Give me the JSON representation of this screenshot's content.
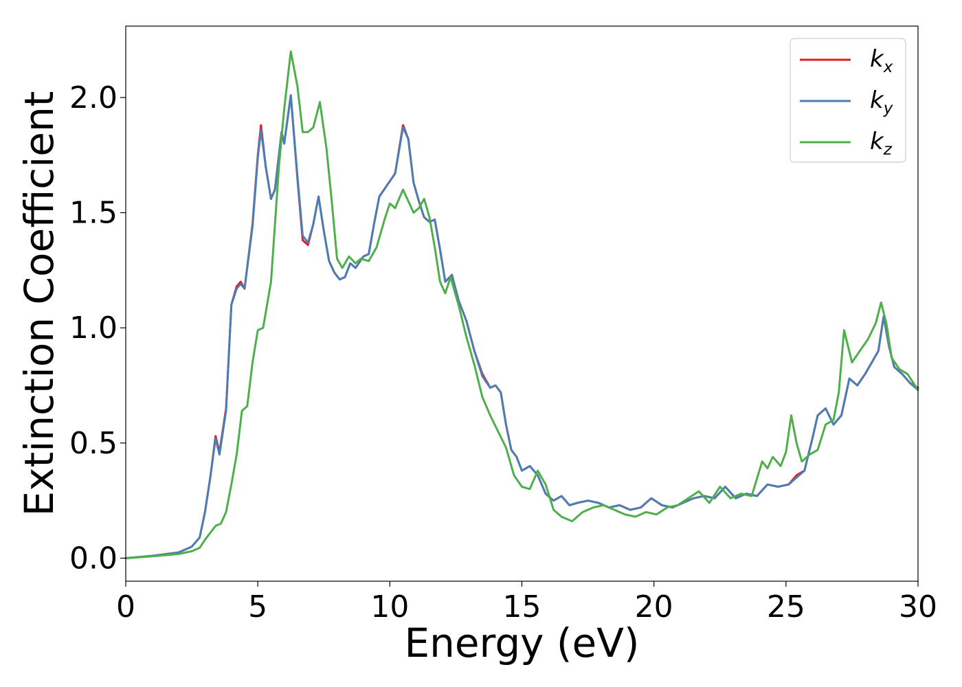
{
  "chart_data": {
    "type": "line",
    "title": "",
    "xlabel": "Energy (eV)",
    "ylabel": "Extinction Coefficient",
    "xlim": [
      0,
      30
    ],
    "ylim": [
      -0.1,
      2.31
    ],
    "xticks": [
      0,
      5,
      10,
      15,
      20,
      25,
      30
    ],
    "xtick_labels": [
      "0",
      "5",
      "10",
      "15",
      "20",
      "25",
      "30"
    ],
    "yticks": [
      0.0,
      0.5,
      1.0,
      1.5,
      2.0
    ],
    "ytick_labels": [
      "0.0",
      "0.5",
      "1.0",
      "1.5",
      "2.0"
    ],
    "grid": false,
    "legend_position": "top-right",
    "series": [
      {
        "name": "k",
        "subscript": "x",
        "color": "#e41a1c",
        "x": [
          0,
          1,
          2,
          2.5,
          2.8,
          3.0,
          3.2,
          3.4,
          3.55,
          3.8,
          4.0,
          4.2,
          4.35,
          4.5,
          4.8,
          5.0,
          5.12,
          5.3,
          5.5,
          5.65,
          5.9,
          6.0,
          6.25,
          6.5,
          6.7,
          6.9,
          7.1,
          7.3,
          7.5,
          7.7,
          7.9,
          8.1,
          8.3,
          8.5,
          8.7,
          9.0,
          9.2,
          9.4,
          9.6,
          9.9,
          10.2,
          10.5,
          10.7,
          10.9,
          11.1,
          11.3,
          11.5,
          11.7,
          11.9,
          12.1,
          12.35,
          12.6,
          12.9,
          13.2,
          13.5,
          13.8,
          14.0,
          14.2,
          14.4,
          14.6,
          14.8,
          15.0,
          15.3,
          15.6,
          15.9,
          16.2,
          16.5,
          16.8,
          17.1,
          17.5,
          17.9,
          18.3,
          18.7,
          19.1,
          19.5,
          19.9,
          20.3,
          20.7,
          21.1,
          21.5,
          21.9,
          22.3,
          22.7,
          23.1,
          23.5,
          23.9,
          24.3,
          24.7,
          25.1,
          25.4,
          25.7,
          26.0,
          26.2,
          26.5,
          26.8,
          27.1,
          27.4,
          27.7,
          28.0,
          28.3,
          28.5,
          28.7,
          28.9,
          29.1,
          29.4,
          29.7,
          30.0
        ],
        "y": [
          0.0,
          0.01,
          0.025,
          0.05,
          0.09,
          0.2,
          0.35,
          0.53,
          0.46,
          0.65,
          1.1,
          1.18,
          1.2,
          1.17,
          1.45,
          1.75,
          1.88,
          1.7,
          1.56,
          1.6,
          1.85,
          1.8,
          2.01,
          1.65,
          1.38,
          1.36,
          1.45,
          1.57,
          1.42,
          1.29,
          1.24,
          1.21,
          1.22,
          1.28,
          1.26,
          1.31,
          1.32,
          1.45,
          1.57,
          1.62,
          1.67,
          1.88,
          1.82,
          1.63,
          1.55,
          1.48,
          1.46,
          1.47,
          1.34,
          1.2,
          1.23,
          1.12,
          1.03,
          0.9,
          0.8,
          0.74,
          0.75,
          0.72,
          0.58,
          0.47,
          0.44,
          0.38,
          0.4,
          0.36,
          0.28,
          0.25,
          0.27,
          0.23,
          0.24,
          0.25,
          0.24,
          0.22,
          0.23,
          0.21,
          0.22,
          0.26,
          0.23,
          0.22,
          0.24,
          0.26,
          0.27,
          0.26,
          0.31,
          0.26,
          0.28,
          0.27,
          0.32,
          0.31,
          0.32,
          0.36,
          0.38,
          0.52,
          0.62,
          0.65,
          0.58,
          0.62,
          0.78,
          0.75,
          0.8,
          0.86,
          0.9,
          1.05,
          0.92,
          0.83,
          0.8,
          0.76,
          0.74
        ]
      },
      {
        "name": "k",
        "subscript": "y",
        "color": "#4a7eb5",
        "x": [
          0,
          1,
          2,
          2.5,
          2.8,
          3.0,
          3.2,
          3.4,
          3.55,
          3.8,
          4.0,
          4.2,
          4.35,
          4.5,
          4.8,
          5.0,
          5.12,
          5.3,
          5.5,
          5.65,
          5.9,
          6.0,
          6.25,
          6.5,
          6.7,
          6.9,
          7.1,
          7.3,
          7.5,
          7.7,
          7.9,
          8.1,
          8.3,
          8.5,
          8.7,
          9.0,
          9.2,
          9.4,
          9.6,
          9.9,
          10.2,
          10.5,
          10.7,
          10.9,
          11.1,
          11.3,
          11.5,
          11.7,
          11.9,
          12.1,
          12.35,
          12.6,
          12.9,
          13.2,
          13.5,
          13.8,
          14.0,
          14.2,
          14.4,
          14.6,
          14.8,
          15.0,
          15.3,
          15.6,
          15.9,
          16.2,
          16.5,
          16.8,
          17.1,
          17.5,
          17.9,
          18.3,
          18.7,
          19.1,
          19.5,
          19.9,
          20.3,
          20.7,
          21.1,
          21.5,
          21.9,
          22.3,
          22.7,
          23.1,
          23.5,
          23.9,
          24.3,
          24.7,
          25.1,
          25.4,
          25.7,
          26.0,
          26.2,
          26.5,
          26.8,
          27.1,
          27.4,
          27.7,
          28.0,
          28.3,
          28.5,
          28.7,
          28.9,
          29.1,
          29.4,
          29.7,
          30.0
        ],
        "y": [
          0.0,
          0.01,
          0.025,
          0.05,
          0.09,
          0.2,
          0.35,
          0.52,
          0.45,
          0.64,
          1.1,
          1.17,
          1.19,
          1.17,
          1.44,
          1.74,
          1.86,
          1.7,
          1.56,
          1.6,
          1.85,
          1.8,
          2.01,
          1.66,
          1.4,
          1.37,
          1.45,
          1.57,
          1.42,
          1.29,
          1.24,
          1.21,
          1.22,
          1.28,
          1.26,
          1.31,
          1.32,
          1.45,
          1.57,
          1.62,
          1.67,
          1.87,
          1.82,
          1.63,
          1.55,
          1.48,
          1.46,
          1.47,
          1.34,
          1.2,
          1.23,
          1.12,
          1.03,
          0.9,
          0.79,
          0.74,
          0.75,
          0.72,
          0.58,
          0.47,
          0.44,
          0.38,
          0.4,
          0.36,
          0.28,
          0.25,
          0.27,
          0.23,
          0.24,
          0.25,
          0.24,
          0.22,
          0.23,
          0.21,
          0.22,
          0.26,
          0.23,
          0.22,
          0.24,
          0.26,
          0.27,
          0.26,
          0.31,
          0.26,
          0.28,
          0.27,
          0.32,
          0.31,
          0.32,
          0.35,
          0.38,
          0.52,
          0.62,
          0.65,
          0.58,
          0.62,
          0.78,
          0.75,
          0.8,
          0.86,
          0.9,
          1.05,
          0.92,
          0.83,
          0.8,
          0.76,
          0.73
        ]
      },
      {
        "name": "k",
        "subscript": "z",
        "color": "#4daf4a",
        "x": [
          0,
          1,
          2,
          2.5,
          2.8,
          3.0,
          3.2,
          3.4,
          3.6,
          3.8,
          4.0,
          4.2,
          4.4,
          4.6,
          4.8,
          5.0,
          5.2,
          5.5,
          5.8,
          6.0,
          6.25,
          6.5,
          6.7,
          6.9,
          7.1,
          7.35,
          7.6,
          7.8,
          8.0,
          8.2,
          8.45,
          8.7,
          8.9,
          9.2,
          9.5,
          9.8,
          10.0,
          10.2,
          10.5,
          10.7,
          10.9,
          11.1,
          11.3,
          11.5,
          11.7,
          11.9,
          12.1,
          12.3,
          12.6,
          12.9,
          13.2,
          13.5,
          13.8,
          14.1,
          14.4,
          14.7,
          15.0,
          15.3,
          15.6,
          15.9,
          16.2,
          16.5,
          16.9,
          17.3,
          17.7,
          18.1,
          18.5,
          18.9,
          19.3,
          19.7,
          20.1,
          20.5,
          20.9,
          21.3,
          21.7,
          22.1,
          22.5,
          22.9,
          23.3,
          23.7,
          24.1,
          24.3,
          24.5,
          24.8,
          25.0,
          25.2,
          25.4,
          25.6,
          25.9,
          26.2,
          26.5,
          26.8,
          27.0,
          27.2,
          27.5,
          27.8,
          28.1,
          28.4,
          28.6,
          28.8,
          29.0,
          29.3,
          29.6,
          30.0
        ],
        "y": [
          0.0,
          0.008,
          0.018,
          0.03,
          0.045,
          0.08,
          0.11,
          0.14,
          0.15,
          0.2,
          0.32,
          0.45,
          0.64,
          0.66,
          0.85,
          0.99,
          1.0,
          1.2,
          1.7,
          1.95,
          2.2,
          2.05,
          1.85,
          1.85,
          1.87,
          1.98,
          1.78,
          1.55,
          1.3,
          1.26,
          1.31,
          1.28,
          1.3,
          1.29,
          1.35,
          1.47,
          1.54,
          1.52,
          1.6,
          1.55,
          1.5,
          1.52,
          1.56,
          1.48,
          1.35,
          1.2,
          1.15,
          1.22,
          1.1,
          0.96,
          0.84,
          0.7,
          0.62,
          0.55,
          0.48,
          0.36,
          0.31,
          0.3,
          0.38,
          0.32,
          0.21,
          0.18,
          0.16,
          0.2,
          0.22,
          0.23,
          0.21,
          0.19,
          0.18,
          0.2,
          0.19,
          0.22,
          0.23,
          0.26,
          0.29,
          0.24,
          0.31,
          0.26,
          0.28,
          0.27,
          0.42,
          0.39,
          0.44,
          0.4,
          0.46,
          0.62,
          0.5,
          0.42,
          0.45,
          0.47,
          0.58,
          0.6,
          0.72,
          0.99,
          0.85,
          0.9,
          0.95,
          1.02,
          1.11,
          1.02,
          0.87,
          0.82,
          0.8,
          0.73
        ]
      }
    ]
  }
}
